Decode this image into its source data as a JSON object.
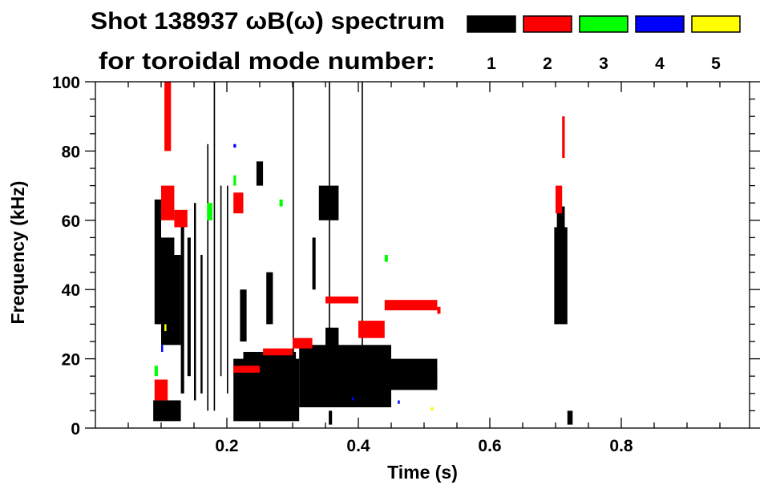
{
  "chart_data": {
    "type": "heatmap",
    "title": "Shot 138937 ωB(ω) spectrum",
    "subtitle": "for toroidal mode number:",
    "xlabel": "Time (s)",
    "ylabel": "Frequency (kHz)",
    "xlim": [
      0,
      1.0
    ],
    "ylim": [
      0,
      100
    ],
    "xticks": [
      0.2,
      0.4,
      0.6,
      0.8
    ],
    "xtick_labels": [
      "0.2",
      "0.4",
      "0.6",
      "0.8"
    ],
    "yticks": [
      0,
      20,
      40,
      60,
      80,
      100
    ],
    "ytick_labels": [
      "0",
      "20",
      "40",
      "60",
      "80",
      "100"
    ],
    "grid": false,
    "legend_placement": "top-right",
    "legend": [
      {
        "label": "1",
        "color": "#000000"
      },
      {
        "label": "2",
        "color": "#ff0000"
      },
      {
        "label": "3",
        "color": "#00ff00"
      },
      {
        "label": "4",
        "color": "#0000ff"
      },
      {
        "label": "5",
        "color": "#ffff00"
      }
    ],
    "series": [
      {
        "mode": "1",
        "color": "#000000",
        "patches": [
          [
            0.088,
            0.13,
            2,
            8
          ],
          [
            0.09,
            0.1,
            30,
            66
          ],
          [
            0.1,
            0.13,
            24,
            50
          ],
          [
            0.1,
            0.12,
            40,
            55
          ],
          [
            0.13,
            0.135,
            10,
            60
          ],
          [
            0.14,
            0.145,
            15,
            55
          ],
          [
            0.15,
            0.153,
            8,
            65
          ],
          [
            0.16,
            0.163,
            10,
            50
          ],
          [
            0.17,
            0.172,
            5,
            82
          ],
          [
            0.18,
            0.182,
            5,
            100
          ],
          [
            0.19,
            0.192,
            15,
            70
          ],
          [
            0.2,
            0.202,
            10,
            70
          ],
          [
            0.21,
            0.31,
            2,
            20
          ],
          [
            0.225,
            0.305,
            4,
            22
          ],
          [
            0.31,
            0.45,
            6,
            24
          ],
          [
            0.35,
            0.37,
            10,
            29
          ],
          [
            0.45,
            0.52,
            11,
            20
          ],
          [
            0.5,
            0.52,
            12,
            17
          ],
          [
            0.245,
            0.255,
            70,
            77
          ],
          [
            0.34,
            0.37,
            60,
            70
          ],
          [
            0.3,
            0.302,
            20,
            100
          ],
          [
            0.355,
            0.357,
            20,
            100
          ],
          [
            0.405,
            0.407,
            20,
            100
          ],
          [
            0.22,
            0.23,
            25,
            40
          ],
          [
            0.26,
            0.27,
            30,
            45
          ],
          [
            0.33,
            0.335,
            40,
            55
          ],
          [
            0.698,
            0.718,
            30,
            58
          ],
          [
            0.702,
            0.714,
            40,
            64
          ],
          [
            0.718,
            0.726,
            1,
            5
          ],
          [
            0.355,
            0.36,
            1,
            5
          ]
        ]
      },
      {
        "mode": "2",
        "color": "#ff0000",
        "patches": [
          [
            0.1,
            0.12,
            60,
            70
          ],
          [
            0.105,
            0.115,
            80,
            100
          ],
          [
            0.12,
            0.14,
            58,
            63
          ],
          [
            0.09,
            0.11,
            8,
            14
          ],
          [
            0.21,
            0.225,
            62,
            68
          ],
          [
            0.21,
            0.25,
            16,
            18
          ],
          [
            0.255,
            0.3,
            21,
            23
          ],
          [
            0.3,
            0.33,
            23,
            26
          ],
          [
            0.35,
            0.4,
            36,
            38
          ],
          [
            0.4,
            0.44,
            26,
            31
          ],
          [
            0.44,
            0.52,
            34,
            37
          ],
          [
            0.52,
            0.525,
            33,
            35
          ],
          [
            0.7,
            0.71,
            62,
            70
          ],
          [
            0.71,
            0.714,
            78,
            90
          ]
        ]
      },
      {
        "mode": "3",
        "color": "#00ff00",
        "patches": [
          [
            0.17,
            0.178,
            60,
            65
          ],
          [
            0.21,
            0.214,
            70,
            73
          ],
          [
            0.28,
            0.285,
            64,
            66
          ],
          [
            0.44,
            0.445,
            48,
            50
          ],
          [
            0.09,
            0.095,
            15,
            18
          ]
        ]
      },
      {
        "mode": "4",
        "color": "#0000ff",
        "patches": [
          [
            0.1,
            0.103,
            22,
            24
          ],
          [
            0.21,
            0.214,
            81,
            82
          ],
          [
            0.39,
            0.393,
            8,
            9
          ],
          [
            0.46,
            0.463,
            7,
            8
          ]
        ]
      },
      {
        "mode": "5",
        "color": "#ffff00",
        "patches": [
          [
            0.51,
            0.514,
            5,
            6
          ],
          [
            0.105,
            0.108,
            28,
            30
          ]
        ]
      }
    ]
  }
}
